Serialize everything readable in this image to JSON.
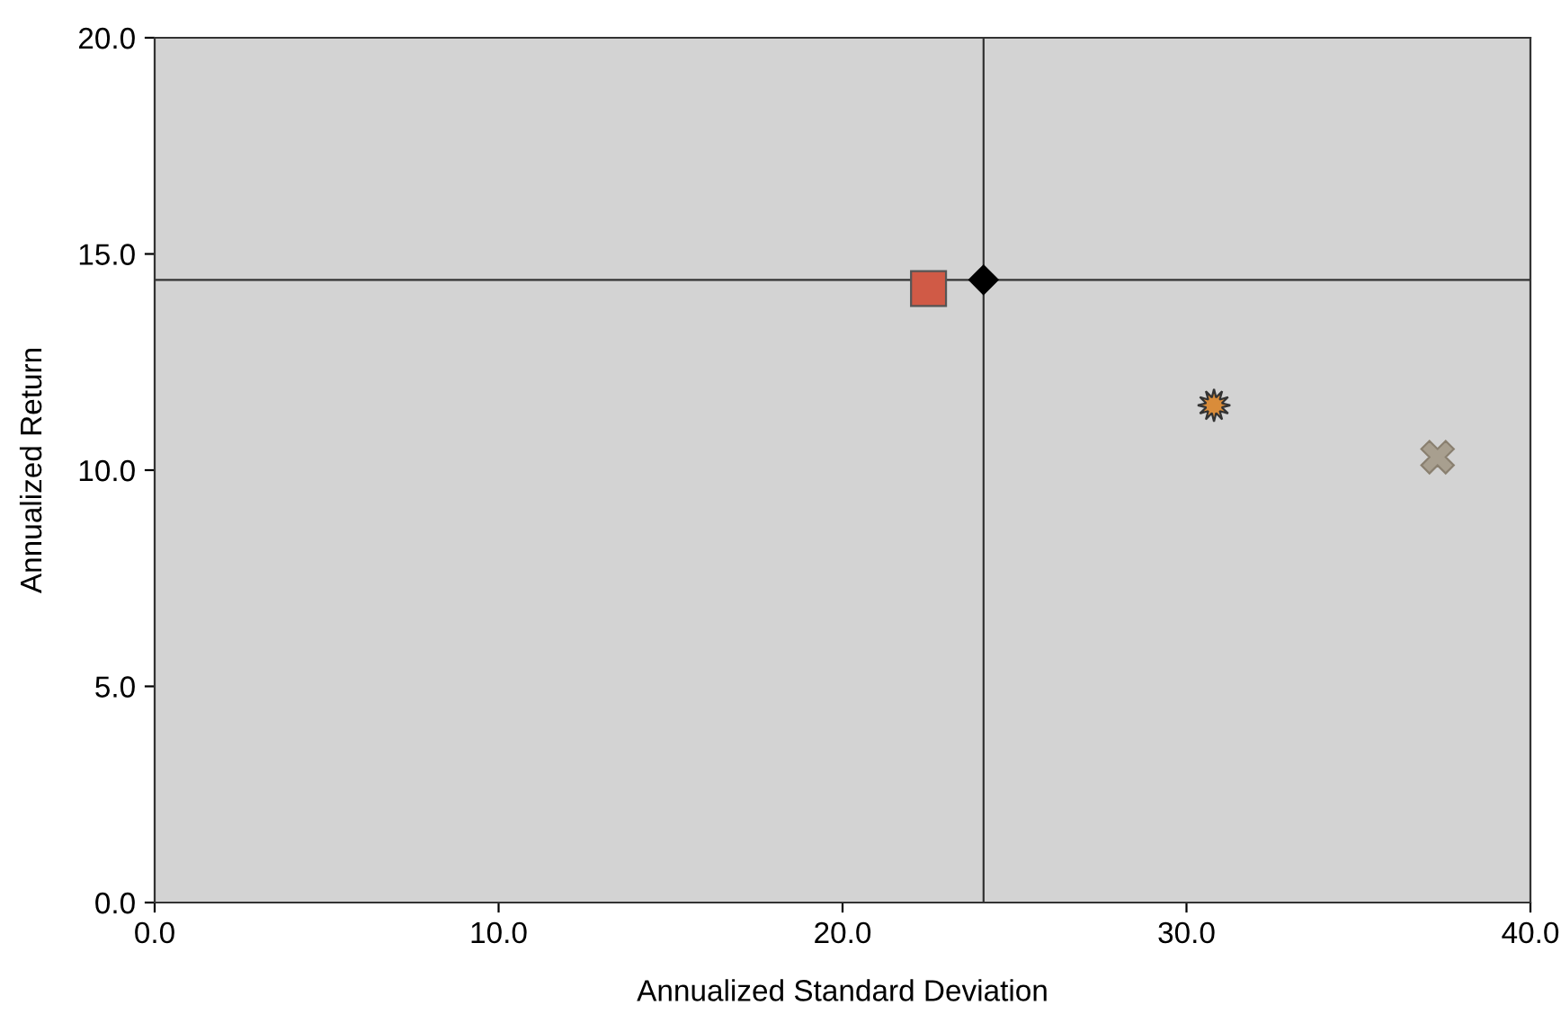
{
  "chart_data": {
    "type": "scatter",
    "xlabel": "Annualized Standard Deviation",
    "ylabel": "Annualized Return",
    "xlim": [
      0,
      40
    ],
    "ylim": [
      0,
      20
    ],
    "xticks": [
      {
        "value": 0,
        "label": "0.0"
      },
      {
        "value": 10,
        "label": "10.0"
      },
      {
        "value": 20,
        "label": "20.0"
      },
      {
        "value": 30,
        "label": "30.0"
      },
      {
        "value": 40,
        "label": "40.0"
      }
    ],
    "yticks": [
      {
        "value": 0,
        "label": "0.0"
      },
      {
        "value": 5,
        "label": "5.0"
      },
      {
        "value": 10,
        "label": "10.0"
      },
      {
        "value": 15,
        "label": "15.0"
      },
      {
        "value": 20,
        "label": "20.0"
      }
    ],
    "grid": false,
    "legend": false,
    "series": [
      {
        "color": "#d05a46",
        "marker": "square",
        "x": [
          22.5
        ],
        "values": [
          14.2
        ]
      },
      {
        "color": "#000000",
        "marker": "diamond",
        "x": [
          24.1
        ],
        "values": [
          14.4
        ]
      },
      {
        "color": "#d98c3a",
        "marker": "star",
        "x": [
          30.8
        ],
        "values": [
          11.5
        ]
      },
      {
        "color": "#a89f8f",
        "marker": "cross",
        "x": [
          37.3
        ],
        "values": [
          10.3
        ]
      }
    ],
    "ref_lines": [
      {
        "axis": "x",
        "value": 24.1,
        "color": "#333333"
      },
      {
        "axis": "y",
        "value": 14.4,
        "color": "#333333"
      }
    ]
  }
}
